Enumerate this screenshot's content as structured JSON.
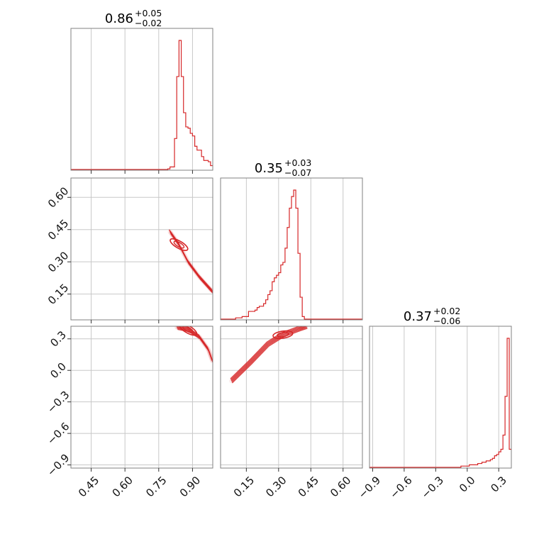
{
  "chart_data": {
    "type": "corner",
    "color": "#d62728",
    "grid": true,
    "titles": [
      {
        "value": "0.86",
        "plus": "+0.05",
        "minus": "−0.02"
      },
      {
        "value": "0.35",
        "plus": "+0.03",
        "minus": "−0.07"
      },
      {
        "value": "0.37",
        "plus": "+0.02",
        "minus": "−0.06"
      }
    ],
    "params": [
      {
        "range": [
          0.36,
          0.99
        ],
        "ticks": [
          0.45,
          0.6,
          0.75,
          0.9
        ],
        "tick_labels": [
          "0.45",
          "0.60",
          "0.75",
          "0.90"
        ]
      },
      {
        "range": [
          0.03,
          0.69
        ],
        "ticks": [
          0.15,
          0.3,
          0.45,
          0.6
        ],
        "tick_labels": [
          "0.15",
          "0.30",
          "0.45",
          "0.60"
        ]
      },
      {
        "range": [
          -0.93,
          0.42
        ],
        "ticks": [
          -0.9,
          -0.6,
          -0.3,
          0.0,
          0.3
        ],
        "tick_labels": [
          "−0.9",
          "−0.6",
          "−0.3",
          "0.0",
          "0.3"
        ]
      }
    ],
    "histograms": [
      {
        "bin_edges": [
          0.36,
          0.79,
          0.8,
          0.81,
          0.82,
          0.83,
          0.84,
          0.85,
          0.86,
          0.87,
          0.88,
          0.89,
          0.9,
          0.91,
          0.92,
          0.93,
          0.94,
          0.95,
          0.96,
          0.97,
          0.98,
          0.99
        ],
        "counts": [
          0,
          0.005,
          0.02,
          0.02,
          0.24,
          0.72,
          1.0,
          0.72,
          0.44,
          0.33,
          0.32,
          0.28,
          0.26,
          0.18,
          0.15,
          0.15,
          0.1,
          0.07,
          0.07,
          0.06,
          0.03
        ]
      },
      {
        "bin_edges": [
          0.03,
          0.1,
          0.13,
          0.16,
          0.19,
          0.2,
          0.21,
          0.22,
          0.23,
          0.24,
          0.25,
          0.26,
          0.27,
          0.28,
          0.29,
          0.3,
          0.31,
          0.32,
          0.33,
          0.34,
          0.35,
          0.36,
          0.37,
          0.38,
          0.39,
          0.4,
          0.41,
          0.42,
          0.69
        ],
        "counts": [
          0,
          0.01,
          0.02,
          0.06,
          0.07,
          0.09,
          0.1,
          0.1,
          0.12,
          0.15,
          0.19,
          0.22,
          0.29,
          0.32,
          0.34,
          0.36,
          0.42,
          0.44,
          0.55,
          0.71,
          0.86,
          0.95,
          1.0,
          0.86,
          0.51,
          0.17,
          0.02,
          0
        ]
      },
      {
        "bin_edges": [
          -0.93,
          -0.06,
          -0.04,
          -0.02,
          0.0,
          0.02,
          0.04,
          0.06,
          0.08,
          0.1,
          0.12,
          0.14,
          0.16,
          0.18,
          0.2,
          0.22,
          0.24,
          0.26,
          0.28,
          0.3,
          0.32,
          0.34,
          0.36,
          0.38,
          0.4,
          0.42
        ],
        "counts": [
          0,
          0.01,
          0.01,
          0.01,
          0.01,
          0.02,
          0.02,
          0.02,
          0.02,
          0.03,
          0.03,
          0.04,
          0.04,
          0.05,
          0.05,
          0.06,
          0.07,
          0.09,
          0.1,
          0.12,
          0.14,
          0.25,
          0.55,
          1.0,
          0.14
        ]
      }
    ],
    "pairs": [
      {
        "x": 0,
        "y": 1,
        "trend": [
          [
            0.8,
            0.44
          ],
          [
            0.84,
            0.38
          ],
          [
            0.88,
            0.3
          ],
          [
            0.93,
            0.23
          ],
          [
            0.99,
            0.16
          ]
        ]
      },
      {
        "x": 0,
        "y": 2,
        "trend": [
          [
            0.83,
            0.41
          ],
          [
            0.88,
            0.39
          ],
          [
            0.93,
            0.32
          ],
          [
            0.97,
            0.2
          ],
          [
            0.99,
            0.08
          ]
        ]
      },
      {
        "x": 1,
        "y": 2,
        "trend": [
          [
            0.08,
            -0.1
          ],
          [
            0.17,
            0.08
          ],
          [
            0.25,
            0.25
          ],
          [
            0.32,
            0.34
          ],
          [
            0.4,
            0.4
          ],
          [
            0.43,
            0.42
          ]
        ]
      }
    ]
  }
}
